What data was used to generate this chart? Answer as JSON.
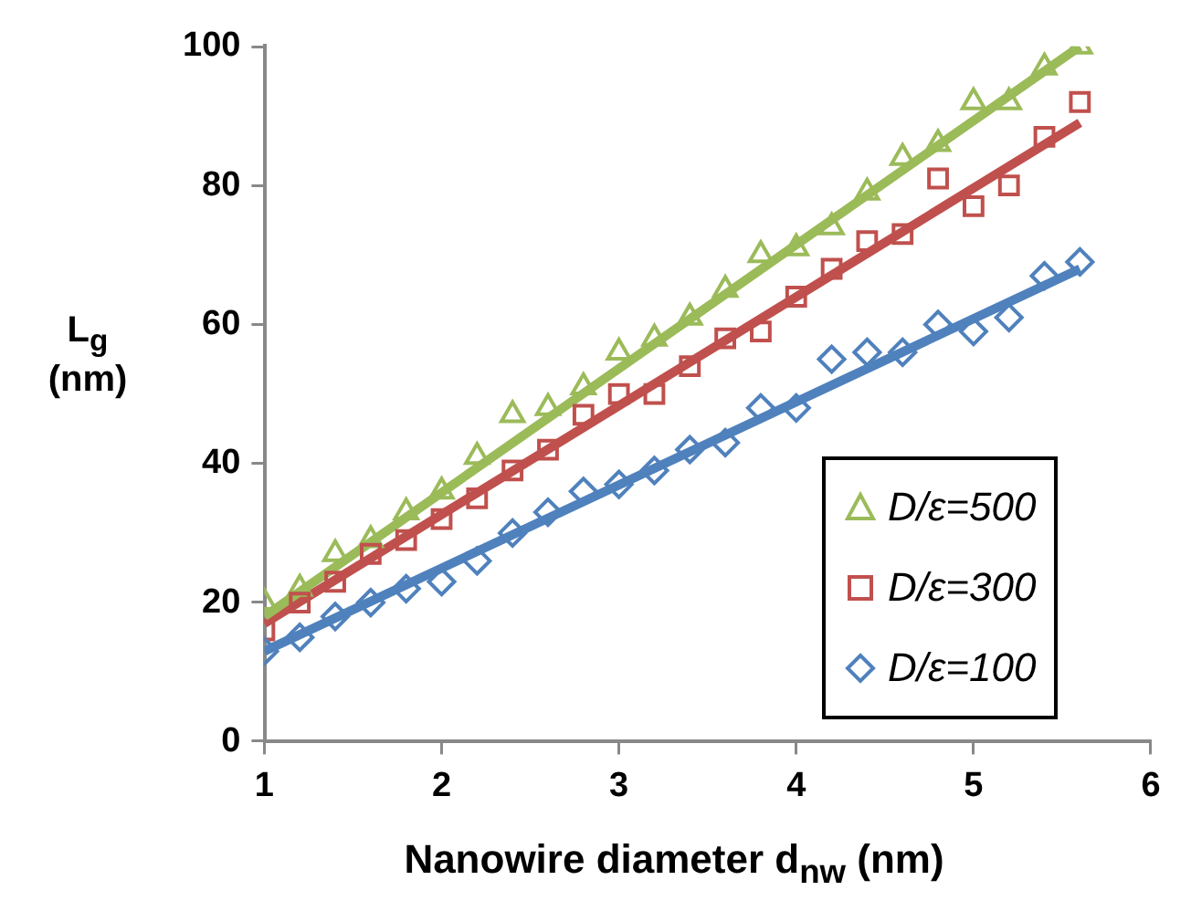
{
  "chart_data": {
    "type": "scatter",
    "xlabel": "Nanowire diameter d$_{nw}$ (nm)",
    "ylabel": "L$_{g}$ (nm)",
    "xlim": [
      1,
      6
    ],
    "xticks": [
      1,
      2,
      3,
      4,
      5,
      6
    ],
    "ylim": [
      0,
      100
    ],
    "yticks": [
      0,
      20,
      40,
      60,
      80,
      100
    ],
    "grid": false,
    "legend": "bottom right",
    "series": [
      {
        "name": "D/ε=500",
        "color": "#9bbb59",
        "marker": "triangle",
        "x": [
          1,
          1.2,
          1.4,
          1.6,
          1.8,
          2,
          2.2,
          2.4,
          2.6,
          2.8,
          3,
          3.2,
          3.4,
          3.6,
          3.8,
          4,
          4.2,
          4.4,
          4.6,
          4.8,
          5,
          5.2,
          5.4,
          5.6
        ],
        "values": [
          20,
          22,
          27,
          29,
          33,
          36,
          41,
          47,
          48,
          51,
          56,
          58,
          61,
          65,
          70,
          71,
          74,
          79,
          84,
          86,
          92,
          92,
          97,
          100
        ]
      },
      {
        "name": "D/ε=300",
        "color": "#c0504d",
        "marker": "square",
        "x": [
          1,
          1.2,
          1.4,
          1.6,
          1.8,
          2,
          2.2,
          2.4,
          2.6,
          2.8,
          3,
          3.2,
          3.4,
          3.6,
          3.8,
          4,
          4.2,
          4.4,
          4.6,
          4.8,
          5,
          5.2,
          5.4,
          5.6
        ],
        "values": [
          16,
          20,
          23,
          27,
          29,
          32,
          35,
          39,
          42,
          47,
          50,
          50,
          54,
          58,
          59,
          64,
          68,
          72,
          73,
          81,
          77,
          80,
          87,
          92
        ]
      },
      {
        "name": "D/ε=100",
        "color": "#4f81bd",
        "marker": "diamond",
        "x": [
          1,
          1.2,
          1.4,
          1.6,
          1.8,
          2,
          2.2,
          2.4,
          2.6,
          2.8,
          3,
          3.2,
          3.4,
          3.6,
          3.8,
          4,
          4.2,
          4.4,
          4.6,
          4.8,
          5,
          5.2,
          5.4,
          5.6
        ],
        "values": [
          13,
          15,
          18,
          20,
          22,
          23,
          26,
          30,
          33,
          36,
          37,
          39,
          42,
          43,
          48,
          48,
          55,
          56,
          56,
          60,
          59,
          61,
          67,
          69
        ]
      },
      {
        "type": "line",
        "color": "#9bbb59",
        "marker": "none",
        "x": [
          1,
          5.6
        ],
        "values": [
          18,
          100
        ]
      },
      {
        "type": "line",
        "color": "#c0504d",
        "marker": "none",
        "x": [
          1,
          5.6
        ],
        "values": [
          17,
          89
        ]
      },
      {
        "type": "line",
        "color": "#4f81bd",
        "marker": "none",
        "x": [
          1,
          5.6
        ],
        "values": [
          13,
          68
        ]
      }
    ]
  }
}
